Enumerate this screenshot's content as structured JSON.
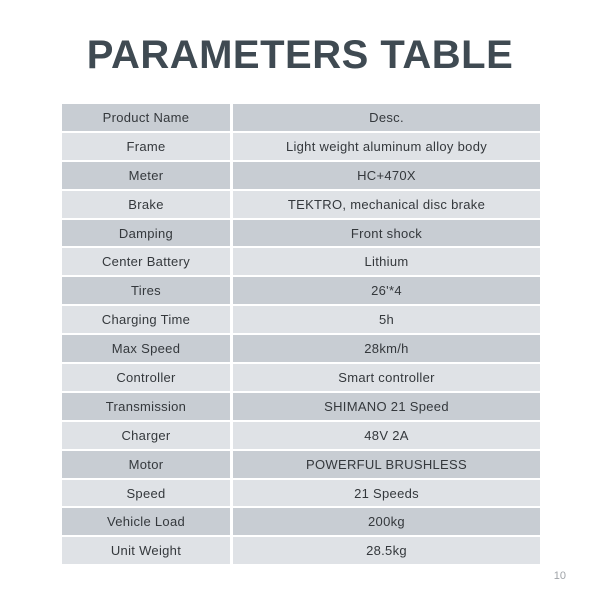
{
  "page": {
    "title": "PARAMETERS TABLE",
    "page_number": "10"
  },
  "colors": {
    "row_dark": "#c8cdd3",
    "row_light": "#dfe2e6",
    "title_color": "#3f4a52",
    "cell_text": "#34383c",
    "page_number_color": "#9fa3a8"
  },
  "table": {
    "rows": [
      {
        "name": "Product Name",
        "value": "Desc."
      },
      {
        "name": "Frame",
        "value": "Light weight aluminum alloy body"
      },
      {
        "name": "Meter",
        "value": "HC+470X"
      },
      {
        "name": "Brake",
        "value": "TEKTRO, mechanical disc brake"
      },
      {
        "name": "Damping",
        "value": "Front shock"
      },
      {
        "name": "Center Battery",
        "value": "Lithium"
      },
      {
        "name": "Tires",
        "value": "26'*4"
      },
      {
        "name": "Charging Time",
        "value": "5h"
      },
      {
        "name": "Max Speed",
        "value": "28km/h"
      },
      {
        "name": "Controller",
        "value": "Smart controller"
      },
      {
        "name": "Transmission",
        "value": "SHIMANO 21 Speed"
      },
      {
        "name": "Charger",
        "value": "48V 2A"
      },
      {
        "name": "Motor",
        "value": "POWERFUL BRUSHLESS"
      },
      {
        "name": "Speed",
        "value": "21 Speeds"
      },
      {
        "name": "Vehicle Load",
        "value": "200kg"
      },
      {
        "name": "Unit Weight",
        "value": "28.5kg"
      }
    ]
  }
}
